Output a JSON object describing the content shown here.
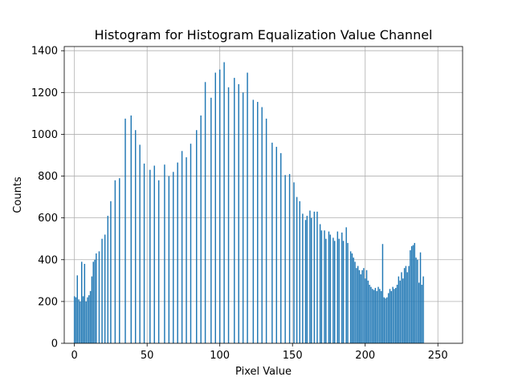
{
  "chart_data": {
    "type": "bar",
    "title": "Histogram for Histogram Equalization Value Channel",
    "xlabel": "Pixel Value",
    "ylabel": "Counts",
    "xlim": [
      -7,
      267
    ],
    "ylim": [
      0,
      1420
    ],
    "xticks": [
      0,
      50,
      100,
      150,
      200,
      250
    ],
    "yticks": [
      0,
      200,
      400,
      600,
      800,
      1000,
      1200,
      1400
    ],
    "grid": true,
    "bar_color": "#1f77b4",
    "bins": [
      {
        "x": 0,
        "y": 225
      },
      {
        "x": 1,
        "y": 220
      },
      {
        "x": 2,
        "y": 325
      },
      {
        "x": 3,
        "y": 210
      },
      {
        "x": 4,
        "y": 200
      },
      {
        "x": 5,
        "y": 390
      },
      {
        "x": 6,
        "y": 225
      },
      {
        "x": 7,
        "y": 380
      },
      {
        "x": 8,
        "y": 200
      },
      {
        "x": 9,
        "y": 220
      },
      {
        "x": 10,
        "y": 230
      },
      {
        "x": 11,
        "y": 250
      },
      {
        "x": 12,
        "y": 320
      },
      {
        "x": 13,
        "y": 390
      },
      {
        "x": 14,
        "y": 400
      },
      {
        "x": 15,
        "y": 430
      },
      {
        "x": 17,
        "y": 440
      },
      {
        "x": 19,
        "y": 500
      },
      {
        "x": 21,
        "y": 520
      },
      {
        "x": 23,
        "y": 610
      },
      {
        "x": 25,
        "y": 680
      },
      {
        "x": 28,
        "y": 780
      },
      {
        "x": 31,
        "y": 790
      },
      {
        "x": 35,
        "y": 1075
      },
      {
        "x": 39,
        "y": 1090
      },
      {
        "x": 42,
        "y": 1020
      },
      {
        "x": 45,
        "y": 950
      },
      {
        "x": 48,
        "y": 860
      },
      {
        "x": 52,
        "y": 830
      },
      {
        "x": 55,
        "y": 850
      },
      {
        "x": 58,
        "y": 780
      },
      {
        "x": 62,
        "y": 855
      },
      {
        "x": 65,
        "y": 800
      },
      {
        "x": 68,
        "y": 820
      },
      {
        "x": 71,
        "y": 865
      },
      {
        "x": 74,
        "y": 920
      },
      {
        "x": 77,
        "y": 890
      },
      {
        "x": 80,
        "y": 955
      },
      {
        "x": 84,
        "y": 1020
      },
      {
        "x": 87,
        "y": 1090
      },
      {
        "x": 90,
        "y": 1250
      },
      {
        "x": 94,
        "y": 1175
      },
      {
        "x": 97,
        "y": 1295
      },
      {
        "x": 100,
        "y": 1310
      },
      {
        "x": 103,
        "y": 1345
      },
      {
        "x": 106,
        "y": 1225
      },
      {
        "x": 110,
        "y": 1270
      },
      {
        "x": 113,
        "y": 1240
      },
      {
        "x": 116,
        "y": 1200
      },
      {
        "x": 119,
        "y": 1295
      },
      {
        "x": 123,
        "y": 1165
      },
      {
        "x": 126,
        "y": 1155
      },
      {
        "x": 129,
        "y": 1130
      },
      {
        "x": 132,
        "y": 1075
      },
      {
        "x": 136,
        "y": 960
      },
      {
        "x": 139,
        "y": 940
      },
      {
        "x": 142,
        "y": 910
      },
      {
        "x": 145,
        "y": 805
      },
      {
        "x": 148,
        "y": 810
      },
      {
        "x": 151,
        "y": 770
      },
      {
        "x": 153,
        "y": 700
      },
      {
        "x": 155,
        "y": 680
      },
      {
        "x": 157,
        "y": 620
      },
      {
        "x": 159,
        "y": 590
      },
      {
        "x": 160,
        "y": 610
      },
      {
        "x": 162,
        "y": 635
      },
      {
        "x": 163,
        "y": 600
      },
      {
        "x": 165,
        "y": 630
      },
      {
        "x": 167,
        "y": 630
      },
      {
        "x": 169,
        "y": 570
      },
      {
        "x": 170,
        "y": 540
      },
      {
        "x": 172,
        "y": 540
      },
      {
        "x": 173,
        "y": 500
      },
      {
        "x": 175,
        "y": 535
      },
      {
        "x": 176,
        "y": 520
      },
      {
        "x": 178,
        "y": 505
      },
      {
        "x": 179,
        "y": 490
      },
      {
        "x": 181,
        "y": 535
      },
      {
        "x": 182,
        "y": 500
      },
      {
        "x": 184,
        "y": 530
      },
      {
        "x": 185,
        "y": 490
      },
      {
        "x": 187,
        "y": 555
      },
      {
        "x": 188,
        "y": 480
      },
      {
        "x": 190,
        "y": 440
      },
      {
        "x": 191,
        "y": 430
      },
      {
        "x": 192,
        "y": 410
      },
      {
        "x": 193,
        "y": 390
      },
      {
        "x": 194,
        "y": 360
      },
      {
        "x": 195,
        "y": 370
      },
      {
        "x": 196,
        "y": 350
      },
      {
        "x": 197,
        "y": 330
      },
      {
        "x": 198,
        "y": 350
      },
      {
        "x": 199,
        "y": 360
      },
      {
        "x": 200,
        "y": 310
      },
      {
        "x": 201,
        "y": 350
      },
      {
        "x": 202,
        "y": 300
      },
      {
        "x": 203,
        "y": 280
      },
      {
        "x": 204,
        "y": 270
      },
      {
        "x": 205,
        "y": 260
      },
      {
        "x": 206,
        "y": 255
      },
      {
        "x": 207,
        "y": 265
      },
      {
        "x": 208,
        "y": 250
      },
      {
        "x": 209,
        "y": 270
      },
      {
        "x": 210,
        "y": 260
      },
      {
        "x": 211,
        "y": 250
      },
      {
        "x": 212,
        "y": 475
      },
      {
        "x": 213,
        "y": 220
      },
      {
        "x": 214,
        "y": 215
      },
      {
        "x": 215,
        "y": 220
      },
      {
        "x": 216,
        "y": 240
      },
      {
        "x": 217,
        "y": 260
      },
      {
        "x": 218,
        "y": 250
      },
      {
        "x": 219,
        "y": 270
      },
      {
        "x": 220,
        "y": 260
      },
      {
        "x": 221,
        "y": 265
      },
      {
        "x": 222,
        "y": 280
      },
      {
        "x": 223,
        "y": 320
      },
      {
        "x": 224,
        "y": 300
      },
      {
        "x": 225,
        "y": 340
      },
      {
        "x": 226,
        "y": 310
      },
      {
        "x": 227,
        "y": 360
      },
      {
        "x": 228,
        "y": 370
      },
      {
        "x": 229,
        "y": 340
      },
      {
        "x": 230,
        "y": 370
      },
      {
        "x": 231,
        "y": 445
      },
      {
        "x": 232,
        "y": 465
      },
      {
        "x": 233,
        "y": 470
      },
      {
        "x": 234,
        "y": 480
      },
      {
        "x": 235,
        "y": 410
      },
      {
        "x": 236,
        "y": 400
      },
      {
        "x": 237,
        "y": 290
      },
      {
        "x": 238,
        "y": 435
      },
      {
        "x": 239,
        "y": 280
      },
      {
        "x": 240,
        "y": 320
      }
    ]
  }
}
